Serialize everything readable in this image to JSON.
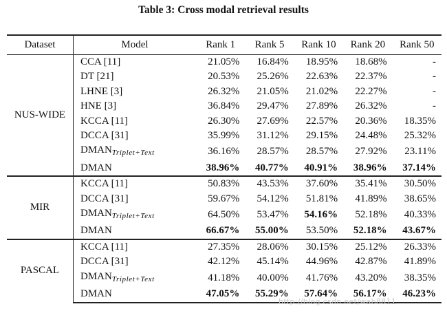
{
  "caption": "Table 3: Cross modal retrieval results",
  "columns": [
    "Dataset",
    "Model",
    "Rank 1",
    "Rank 5",
    "Rank 10",
    "Rank 20",
    "Rank 50"
  ],
  "groups": [
    {
      "dataset": "NUS-WIDE",
      "rows": [
        {
          "model": "CCA [11]",
          "sub": "",
          "values": [
            "21.05%",
            "16.84%",
            "18.95%",
            "18.68%",
            "-"
          ],
          "bold": [
            false,
            false,
            false,
            false,
            false
          ]
        },
        {
          "model": "DT [21]",
          "sub": "",
          "values": [
            "20.53%",
            "25.26%",
            "22.63%",
            "22.37%",
            "-"
          ],
          "bold": [
            false,
            false,
            false,
            false,
            false
          ]
        },
        {
          "model": "LHNE [3]",
          "sub": "",
          "values": [
            "26.32%",
            "21.05%",
            "21.02%",
            "22.27%",
            "-"
          ],
          "bold": [
            false,
            false,
            false,
            false,
            false
          ]
        },
        {
          "model": "HNE [3]",
          "sub": "",
          "values": [
            "36.84%",
            "29.47%",
            "27.89%",
            "26.32%",
            "-"
          ],
          "bold": [
            false,
            false,
            false,
            false,
            false
          ]
        },
        {
          "model": "KCCA [11]",
          "sub": "",
          "values": [
            "26.30%",
            "27.69%",
            "22.57%",
            "20.36%",
            "18.35%"
          ],
          "bold": [
            false,
            false,
            false,
            false,
            false
          ]
        },
        {
          "model": "DCCA [31]",
          "sub": "",
          "values": [
            "35.99%",
            "31.12%",
            "29.15%",
            "24.48%",
            "25.32%"
          ],
          "bold": [
            false,
            false,
            false,
            false,
            false
          ]
        },
        {
          "model": "DMAN",
          "sub": "Triplet+Text",
          "values": [
            "36.16%",
            "28.57%",
            "28.57%",
            "27.92%",
            "23.11%"
          ],
          "bold": [
            false,
            false,
            false,
            false,
            false
          ]
        },
        {
          "model": "DMAN",
          "sub": "",
          "values": [
            "38.96%",
            "40.77%",
            "40.91%",
            "38.96%",
            "37.14%"
          ],
          "bold": [
            true,
            true,
            true,
            true,
            true
          ]
        }
      ]
    },
    {
      "dataset": "MIR",
      "rows": [
        {
          "model": "KCCA [11]",
          "sub": "",
          "values": [
            "50.83%",
            "43.53%",
            "37.60%",
            "35.41%",
            "30.50%"
          ],
          "bold": [
            false,
            false,
            false,
            false,
            false
          ]
        },
        {
          "model": "DCCA [31]",
          "sub": "",
          "values": [
            "59.67%",
            "54.12%",
            "51.81%",
            "41.89%",
            "38.65%"
          ],
          "bold": [
            false,
            false,
            false,
            false,
            false
          ]
        },
        {
          "model": "DMAN",
          "sub": "Triplet+Text",
          "values": [
            "64.50%",
            "53.47%",
            "54.16%",
            "52.18%",
            "40.33%"
          ],
          "bold": [
            false,
            false,
            true,
            false,
            false
          ]
        },
        {
          "model": "DMAN",
          "sub": "",
          "values": [
            "66.67%",
            "55.00%",
            "53.50%",
            "52.18%",
            "43.67%"
          ],
          "bold": [
            true,
            true,
            false,
            true,
            true
          ]
        }
      ]
    },
    {
      "dataset": "PASCAL",
      "rows": [
        {
          "model": "KCCA [11]",
          "sub": "",
          "values": [
            "27.35%",
            "28.06%",
            "30.15%",
            "25.12%",
            "26.33%"
          ],
          "bold": [
            false,
            false,
            false,
            false,
            false
          ]
        },
        {
          "model": "DCCA [31]",
          "sub": "",
          "values": [
            "42.12%",
            "45.14%",
            "44.96%",
            "42.87%",
            "41.89%"
          ],
          "bold": [
            false,
            false,
            false,
            false,
            false
          ]
        },
        {
          "model": "DMAN",
          "sub": "Triplet+Text",
          "values": [
            "41.18%",
            "40.00%",
            "41.76%",
            "43.20%",
            "38.35%"
          ],
          "bold": [
            false,
            false,
            false,
            false,
            false
          ]
        },
        {
          "model": "DMAN",
          "sub": "",
          "values": [
            "47.05%",
            "55.29%",
            "57.64%",
            "56.17%",
            "46.23%"
          ],
          "bold": [
            true,
            true,
            true,
            true,
            true
          ]
        }
      ]
    }
  ],
  "watermark": "http://blog.csdn.net/wab8811"
}
